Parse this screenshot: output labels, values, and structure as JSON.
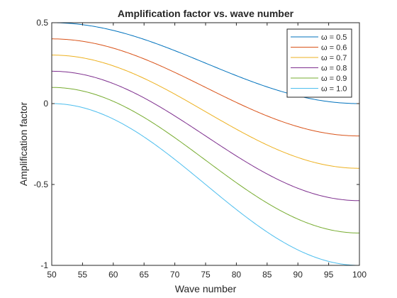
{
  "chart_data": {
    "type": "line",
    "title": "Amplification factor vs. wave number",
    "xlabel": "Wave number",
    "ylabel": "Amplification factor",
    "xlim": [
      50,
      100
    ],
    "ylim": [
      -1,
      0.5
    ],
    "xticks": [
      50,
      55,
      60,
      65,
      70,
      75,
      80,
      85,
      90,
      95,
      100
    ],
    "xtick_labels": [
      "50",
      "55",
      "60",
      "65",
      "70",
      "75",
      "80",
      "85",
      "90",
      "95",
      "100"
    ],
    "yticks": [
      -1,
      -0.5,
      0,
      0.5
    ],
    "ytick_labels": [
      "-1",
      "-0.5",
      "0",
      "0.5"
    ],
    "grid": false,
    "legend_position": "top-right",
    "x": [
      50,
      55,
      60,
      65,
      70,
      75,
      80,
      85,
      90,
      95,
      100
    ],
    "series": [
      {
        "name": "ω = 0.5",
        "color": "#0072BD",
        "values": [
          0.5,
          0.488,
          0.452,
          0.397,
          0.327,
          0.25,
          0.173,
          0.103,
          0.048,
          0.012,
          0.0
        ]
      },
      {
        "name": "ω = 0.6",
        "color": "#D95319",
        "values": [
          0.4,
          0.386,
          0.343,
          0.276,
          0.193,
          0.1,
          0.007,
          -0.076,
          -0.143,
          -0.186,
          -0.2
        ]
      },
      {
        "name": "ω = 0.7",
        "color": "#EDB120",
        "values": [
          0.3,
          0.283,
          0.233,
          0.156,
          0.058,
          -0.05,
          -0.158,
          -0.256,
          -0.333,
          -0.383,
          -0.4
        ]
      },
      {
        "name": "ω = 0.8",
        "color": "#7E2F8E",
        "values": [
          0.2,
          0.181,
          0.124,
          0.035,
          -0.076,
          -0.2,
          -0.324,
          -0.435,
          -0.524,
          -0.581,
          -0.6
        ]
      },
      {
        "name": "ω = 0.9",
        "color": "#77AC30",
        "values": [
          0.1,
          0.078,
          0.014,
          -0.085,
          -0.21,
          -0.35,
          -0.49,
          -0.615,
          -0.714,
          -0.778,
          -0.8
        ]
      },
      {
        "name": "ω = 1.0",
        "color": "#4DBEEE",
        "values": [
          0.0,
          -0.024,
          -0.095,
          -0.206,
          -0.345,
          -0.5,
          -0.655,
          -0.794,
          -0.905,
          -0.976,
          -1.0
        ]
      }
    ]
  }
}
